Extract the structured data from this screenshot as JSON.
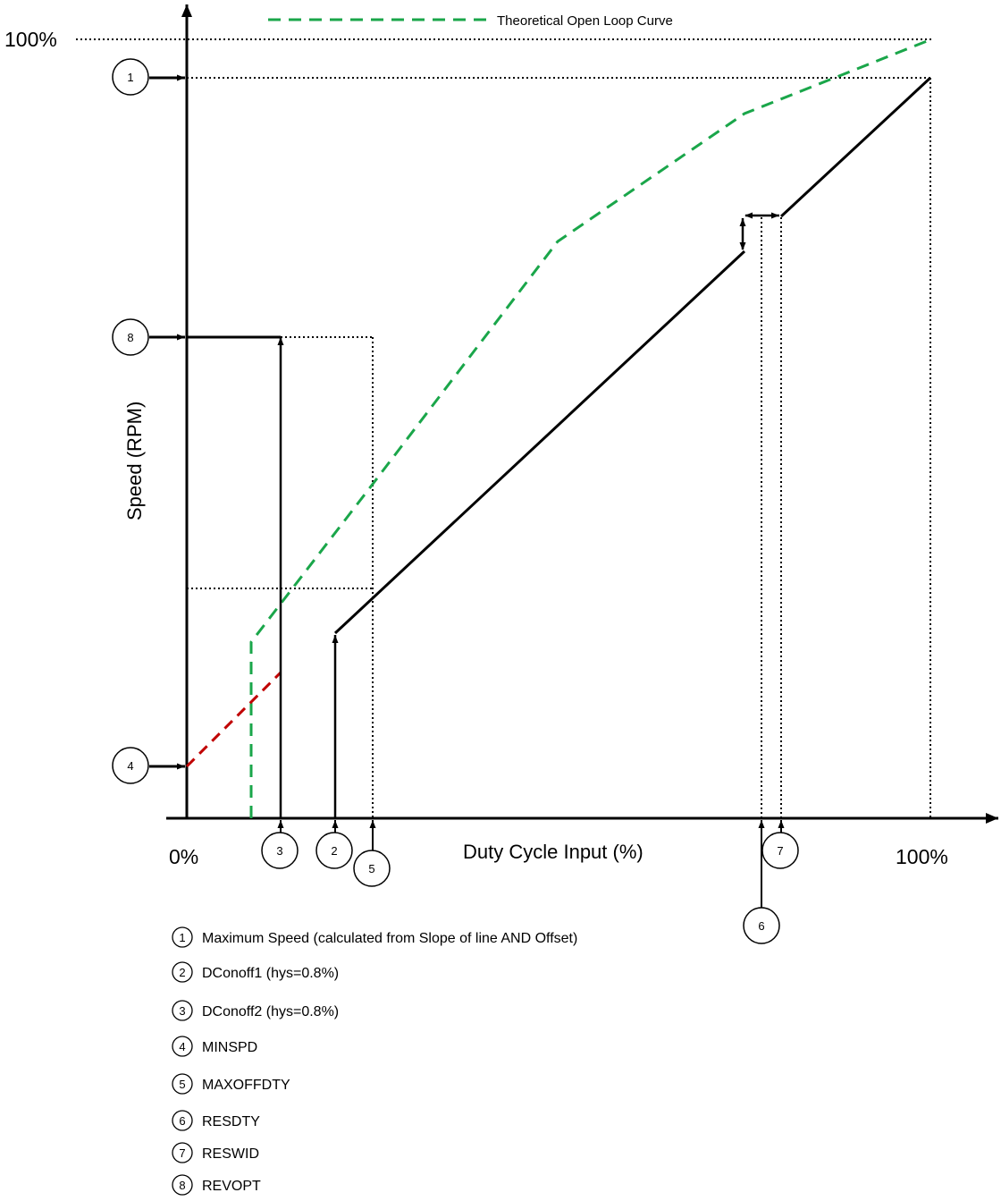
{
  "diagram": {
    "x_axis_label": "Duty Cycle Input (%)",
    "y_axis_label": "Speed (RPM)",
    "x_start_label": "0%",
    "x_end_label": "100%",
    "y_max_label": "100%",
    "curve_legend": "Theoretical Open Loop Curve",
    "colors": {
      "open_loop_curve": "#1aa64a",
      "min_speed_extension": "#c00000",
      "operating_line": "#000000"
    },
    "markers": {
      "m1": "1",
      "m2": "2",
      "m3": "3",
      "m4": "4",
      "m5": "5",
      "m6": "6",
      "m7": "7",
      "m8": "8"
    },
    "legend": [
      {
        "num": "1",
        "text": "Maximum Speed (calculated from Slope of line AND Offset)"
      },
      {
        "num": "2",
        "text": "DConoff1 (hys=0.8%)"
      },
      {
        "num": "3",
        "text": "DConoff2 (hys=0.8%)"
      },
      {
        "num": "4",
        "text": "MINSPD"
      },
      {
        "num": "5",
        "text": "MAXOFFDTY"
      },
      {
        "num": "6",
        "text": "RESDTY"
      },
      {
        "num": "7",
        "text": "RESWID"
      },
      {
        "num": "8",
        "text": "REVOPT"
      }
    ]
  }
}
